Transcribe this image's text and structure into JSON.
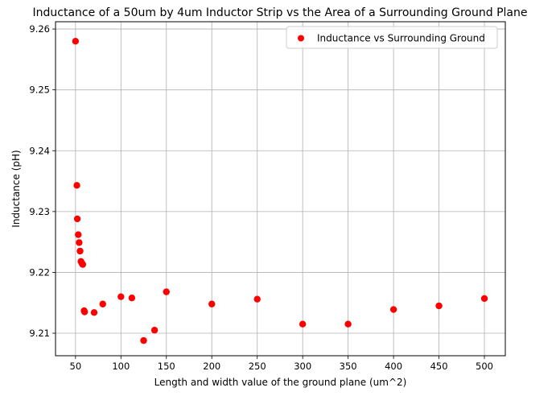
{
  "chart_data": {
    "type": "scatter",
    "title": "Inductance of a 50um by 4um Inductor Strip vs the Area of a Surrounding Ground Plane",
    "xlabel": "Length and width value of the ground plane (um^2)",
    "ylabel": "Inductance (pH)",
    "xlim": [
      28,
      523
    ],
    "ylim": [
      9.2063,
      9.2612
    ],
    "xticks": [
      50,
      100,
      150,
      200,
      250,
      300,
      350,
      400,
      450,
      500
    ],
    "yticks": [
      9.21,
      9.22,
      9.23,
      9.24,
      9.25,
      9.26
    ],
    "ytick_labels": [
      "9.21",
      "9.22",
      "9.23",
      "9.24",
      "9.25",
      "9.26"
    ],
    "grid": true,
    "legend": {
      "placement": "top-right"
    },
    "series": [
      {
        "name": "Inductance vs Surrounding Ground",
        "color": "#ff0000",
        "marker": "circle",
        "x": [
          50,
          51.5,
          52,
          53,
          54,
          55,
          56,
          57,
          58,
          59.5,
          60,
          70.5,
          80,
          100,
          112,
          125,
          137,
          150,
          200,
          250,
          300,
          350,
          400,
          450,
          500
        ],
        "y": [
          9.258,
          9.2343,
          9.2288,
          9.2262,
          9.2249,
          9.2235,
          9.2218,
          9.2215,
          9.2213,
          9.2137,
          9.2135,
          9.2134,
          9.2148,
          9.216,
          9.2158,
          9.2088,
          9.2105,
          9.2168,
          9.2148,
          9.2156,
          9.2115,
          9.2115,
          9.2139,
          9.2145,
          9.2157
        ]
      }
    ]
  }
}
